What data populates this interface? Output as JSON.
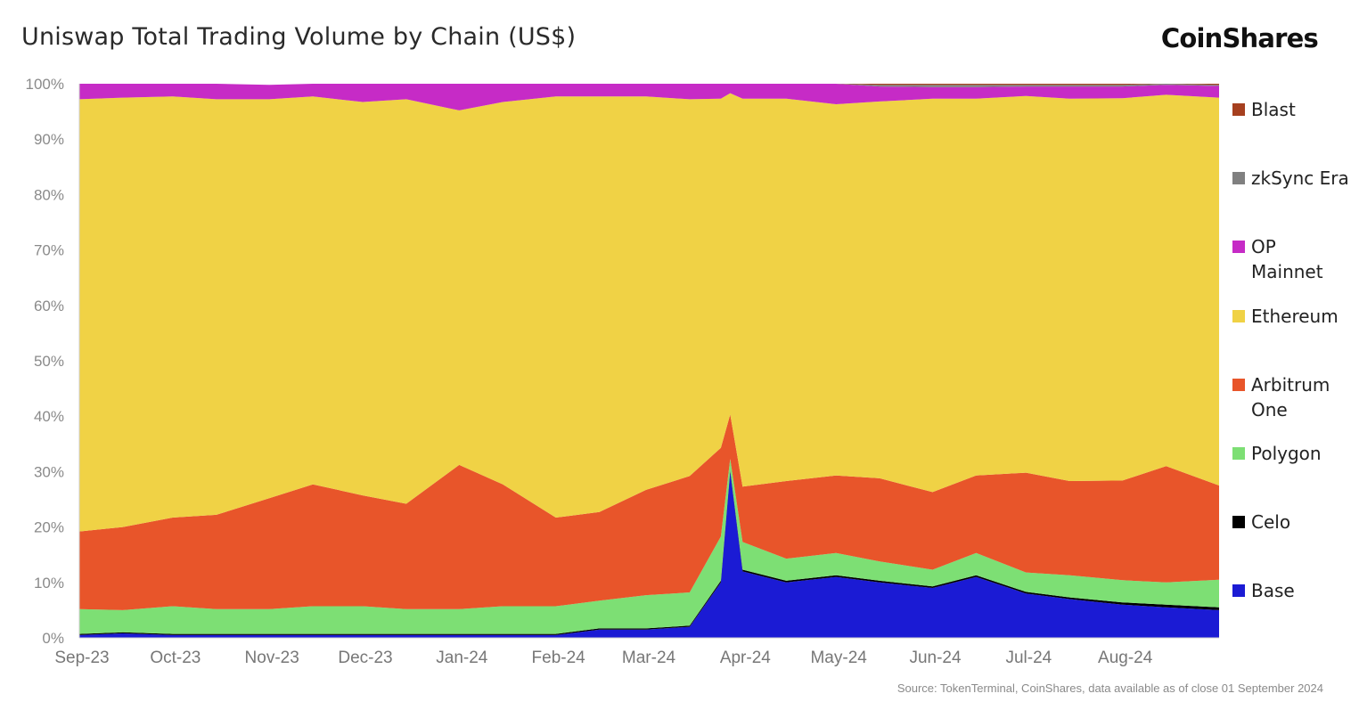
{
  "header": {
    "title": "Uniswap Total Trading Volume by Chain (US$)",
    "brand": "CoinShares"
  },
  "footer": {
    "source": "Source: TokenTerminal, CoinShares, data available as of close 01 September 2024"
  },
  "chart_data": {
    "type": "area",
    "stacked": true,
    "normalized": true,
    "x": [
      "2023-09-01",
      "2023-09-15",
      "2023-10-01",
      "2023-10-15",
      "2023-11-01",
      "2023-11-15",
      "2023-12-01",
      "2023-12-15",
      "2024-01-01",
      "2024-01-15",
      "2024-02-01",
      "2024-02-15",
      "2024-03-01",
      "2024-03-15",
      "2024-03-25",
      "2024-03-28",
      "2024-04-01",
      "2024-04-15",
      "2024-05-01",
      "2024-05-15",
      "2024-06-01",
      "2024-06-15",
      "2024-07-01",
      "2024-07-15",
      "2024-08-01",
      "2024-08-15",
      "2024-09-01"
    ],
    "x_tick_labels": [
      "Sep-23",
      "Oct-23",
      "Nov-23",
      "Dec-23",
      "Jan-24",
      "Feb-24",
      "Mar-24",
      "Apr-24",
      "May-24",
      "Jun-24",
      "Jul-24",
      "Aug-24"
    ],
    "y_tick_labels": [
      "0%",
      "10%",
      "20%",
      "30%",
      "40%",
      "50%",
      "60%",
      "70%",
      "80%",
      "90%",
      "100%"
    ],
    "ylim": [
      0,
      100
    ],
    "unit": "%",
    "series": [
      {
        "name": "Base",
        "color": "#1b1bd4",
        "values": [
          0.5,
          0.8,
          0.5,
          0.5,
          0.5,
          0.5,
          0.5,
          0.5,
          0.5,
          0.5,
          0.5,
          1.5,
          1.5,
          2,
          10,
          30,
          12,
          10,
          11,
          10,
          9,
          11,
          8,
          7,
          6,
          5.5,
          5
        ]
      },
      {
        "name": "Celo",
        "color": "#000000",
        "values": [
          0.2,
          0.2,
          0.2,
          0.2,
          0.2,
          0.2,
          0.2,
          0.2,
          0.2,
          0.2,
          0.2,
          0.2,
          0.2,
          0.2,
          0.3,
          0.3,
          0.3,
          0.3,
          0.3,
          0.3,
          0.3,
          0.3,
          0.3,
          0.3,
          0.4,
          0.5,
          0.5
        ]
      },
      {
        "name": "Polygon",
        "color": "#7ddf74",
        "values": [
          4.5,
          4,
          5,
          4.5,
          4.5,
          5,
          5,
          4.5,
          4.5,
          5,
          5,
          5,
          6,
          6,
          8,
          2,
          5,
          4,
          4,
          3.5,
          3,
          4,
          3.5,
          4,
          4,
          4,
          5
        ]
      },
      {
        "name": "Arbitrum One",
        "color": "#e8552a",
        "values": [
          14,
          15,
          16,
          17,
          20,
          22,
          20,
          19,
          26,
          22,
          16,
          16,
          19,
          21,
          16,
          8,
          10,
          14,
          14,
          15,
          14,
          14,
          18,
          17,
          18,
          21,
          17
        ]
      },
      {
        "name": "Ethereum",
        "color": "#f0d245",
        "values": [
          78,
          77.5,
          76,
          75,
          72,
          70,
          71,
          73,
          64,
          69,
          76,
          75,
          71,
          68,
          63,
          58,
          70,
          69,
          67,
          68,
          71,
          68,
          68,
          69,
          69,
          67,
          70
        ]
      },
      {
        "name": "OP Mainnet",
        "color": "#c62bc6",
        "values": [
          2.8,
          2.5,
          2.3,
          2.8,
          2.6,
          2.3,
          3.3,
          2.8,
          4.8,
          3.3,
          2.3,
          2.3,
          2.3,
          2.8,
          2.7,
          1.7,
          2.7,
          2.7,
          3.7,
          2.7,
          2.1,
          2.1,
          1.7,
          2.2,
          2.1,
          1.8,
          2.1
        ]
      },
      {
        "name": "zkSync Era",
        "color": "#808080",
        "values": [
          0,
          0,
          0,
          0,
          0,
          0,
          0,
          0,
          0,
          0,
          0,
          0,
          0,
          0,
          0,
          0,
          0,
          0,
          0,
          0.3,
          0.4,
          0.4,
          0.3,
          0.3,
          0.3,
          0.2,
          0.2
        ]
      },
      {
        "name": "Blast",
        "color": "#a6401f",
        "values": [
          0,
          0,
          0,
          0,
          0,
          0,
          0,
          0,
          0,
          0,
          0,
          0,
          0,
          0,
          0,
          0,
          0,
          0,
          0,
          0.2,
          0.2,
          0.2,
          0.2,
          0.2,
          0.2,
          0.2,
          0.2
        ]
      }
    ],
    "legend_order": [
      "Blast",
      "zkSync Era",
      "OP Mainnet",
      "Ethereum",
      "Arbitrum One",
      "Polygon",
      "Celo",
      "Base"
    ],
    "legend_position": "right"
  }
}
